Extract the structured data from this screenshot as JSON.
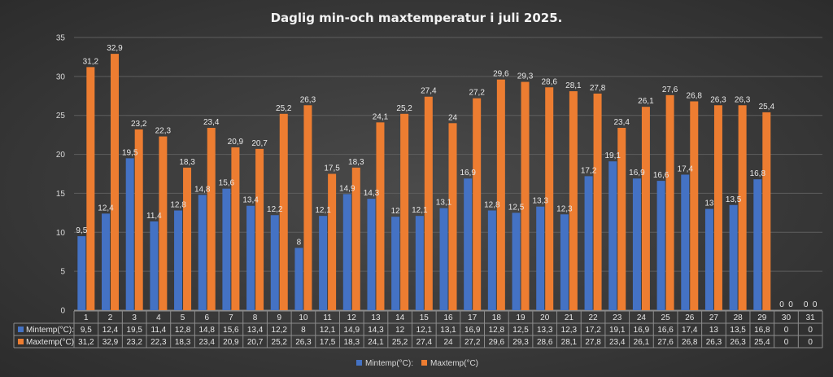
{
  "chart_data": {
    "type": "bar",
    "title": "Daglig min-och maxtemperatur i juli 2025.",
    "categories": [
      "1",
      "2",
      "3",
      "4",
      "5",
      "6",
      "7",
      "8",
      "9",
      "10",
      "11",
      "12",
      "13",
      "14",
      "15",
      "16",
      "17",
      "18",
      "19",
      "20",
      "21",
      "22",
      "23",
      "24",
      "25",
      "26",
      "27",
      "28",
      "29",
      "30",
      "31"
    ],
    "series": [
      {
        "name": "Mintemp(°C):",
        "color": "#4472c4",
        "values": [
          9.5,
          12.4,
          19.5,
          11.4,
          12.8,
          14.8,
          15.6,
          13.4,
          12.2,
          8,
          12.1,
          14.9,
          14.3,
          12,
          12.1,
          13.1,
          16.9,
          12.8,
          12.5,
          13.3,
          12.3,
          17.2,
          19.1,
          16.9,
          16.6,
          17.4,
          13,
          13.5,
          16.8,
          0,
          0
        ],
        "labels": [
          "9,5",
          "12,4",
          "19,5",
          "11,4",
          "12,8",
          "14,8",
          "15,6",
          "13,4",
          "12,2",
          "8",
          "12,1",
          "14,9",
          "14,3",
          "12",
          "12,1",
          "13,1",
          "16,9",
          "12,8",
          "12,5",
          "13,3",
          "12,3",
          "17,2",
          "19,1",
          "16,9",
          "16,6",
          "17,4",
          "13",
          "13,5",
          "16,8",
          "0",
          "0"
        ]
      },
      {
        "name": "Maxtemp(°C)",
        "color": "#ed7d31",
        "values": [
          31.2,
          32.9,
          23.2,
          22.3,
          18.3,
          23.4,
          20.9,
          20.7,
          25.2,
          26.3,
          17.5,
          18.3,
          24.1,
          25.2,
          27.4,
          24,
          27.2,
          29.6,
          29.3,
          28.6,
          28.1,
          27.8,
          23.4,
          26.1,
          27.6,
          26.8,
          26.3,
          26.3,
          25.4,
          0,
          0
        ],
        "labels": [
          "31,2",
          "32,9",
          "23,2",
          "22,3",
          "18,3",
          "23,4",
          "20,9",
          "20,7",
          "25,2",
          "26,3",
          "17,5",
          "18,3",
          "24,1",
          "25,2",
          "27,4",
          "24",
          "27,2",
          "29,6",
          "29,3",
          "28,6",
          "28,1",
          "27,8",
          "23,4",
          "26,1",
          "27,6",
          "26,8",
          "26,3",
          "26,3",
          "25,4",
          "0",
          "0"
        ]
      }
    ],
    "ylim": [
      0,
      35
    ],
    "yticks": [
      "0",
      "5",
      "10",
      "15",
      "20",
      "25",
      "30",
      "35"
    ],
    "grid": true,
    "legend": "bottom-center",
    "data_table": true
  }
}
